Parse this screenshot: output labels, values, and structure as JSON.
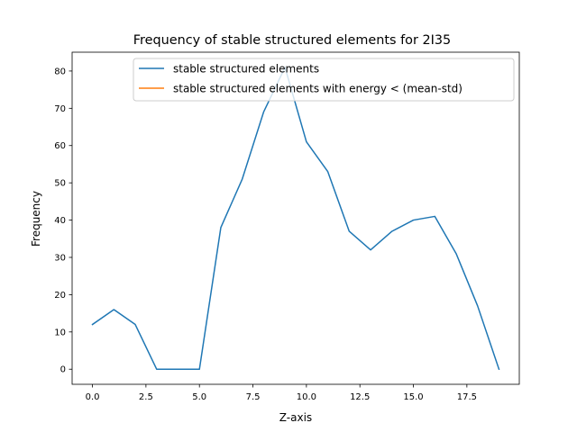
{
  "chart_data": {
    "type": "line",
    "title": "Frequency of stable structured elements for 2I35",
    "xlabel": "Z-axis",
    "ylabel": "Frequency",
    "xlim": [
      -0.95,
      19.95
    ],
    "ylim": [
      -4.05,
      85.05
    ],
    "xticks": [
      0.0,
      2.5,
      5.0,
      7.5,
      10.0,
      12.5,
      15.0,
      17.5
    ],
    "xtick_labels": [
      "0.0",
      "2.5",
      "5.0",
      "7.5",
      "10.0",
      "12.5",
      "15.0",
      "17.5"
    ],
    "yticks": [
      0,
      10,
      20,
      30,
      40,
      50,
      60,
      70,
      80
    ],
    "ytick_labels": [
      "0",
      "10",
      "20",
      "30",
      "40",
      "50",
      "60",
      "70",
      "80"
    ],
    "grid": false,
    "legend_position": "top-right",
    "series": [
      {
        "name": "stable structured elements",
        "color": "#1f77b4",
        "x": [
          0,
          1,
          2,
          3,
          4,
          5,
          6,
          7,
          8,
          9,
          10,
          11,
          12,
          13,
          14,
          15,
          16,
          17,
          18,
          19
        ],
        "values": [
          12,
          16,
          12,
          0,
          0,
          0,
          38,
          51,
          69,
          81,
          61,
          53,
          37,
          32,
          37,
          40,
          41,
          31,
          17,
          0
        ]
      },
      {
        "name": "stable structured elements with energy < (mean-std)",
        "color": "#ff7f0e",
        "x": [],
        "values": []
      }
    ]
  }
}
